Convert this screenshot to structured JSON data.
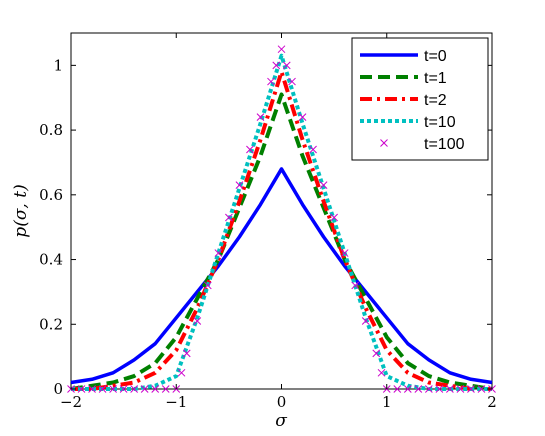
{
  "chart_data": {
    "type": "line",
    "title": "",
    "xlabel": "σ",
    "ylabel": "p(σ, t)",
    "xlim": [
      -2,
      2
    ],
    "ylim": [
      0,
      1.1
    ],
    "xticks": [
      -2,
      -1,
      0,
      1,
      2
    ],
    "yticks": [
      0,
      0.2,
      0.4,
      0.6,
      0.8,
      1
    ],
    "xtick_labels": [
      "−2",
      "−1",
      "0",
      "1",
      "2"
    ],
    "ytick_labels": [
      "0",
      "0.2",
      "0.4",
      "0.6",
      "0.8",
      "1"
    ],
    "legend_position": "top-right",
    "grid": false,
    "series": [
      {
        "name": "t=0",
        "color": "#0000ff",
        "style": "solid",
        "x": [
          -2,
          -1.8,
          -1.6,
          -1.4,
          -1.2,
          -1.0,
          -0.8,
          -0.6,
          -0.4,
          -0.2,
          0,
          0.2,
          0.4,
          0.6,
          0.8,
          1.0,
          1.2,
          1.4,
          1.6,
          1.8,
          2
        ],
        "y": [
          0.02,
          0.03,
          0.05,
          0.09,
          0.14,
          0.22,
          0.3,
          0.38,
          0.47,
          0.57,
          0.68,
          0.57,
          0.47,
          0.38,
          0.3,
          0.22,
          0.14,
          0.09,
          0.05,
          0.03,
          0.02
        ]
      },
      {
        "name": "t=1",
        "color": "#008000",
        "style": "dashed",
        "x": [
          -2,
          -1.8,
          -1.6,
          -1.4,
          -1.2,
          -1.0,
          -0.8,
          -0.6,
          -0.4,
          -0.2,
          0,
          0.2,
          0.4,
          0.6,
          0.8,
          1.0,
          1.2,
          1.4,
          1.6,
          1.8,
          2
        ],
        "y": [
          0.0,
          0.01,
          0.02,
          0.04,
          0.08,
          0.16,
          0.28,
          0.4,
          0.56,
          0.72,
          0.91,
          0.72,
          0.56,
          0.4,
          0.28,
          0.16,
          0.08,
          0.04,
          0.02,
          0.01,
          0.0
        ]
      },
      {
        "name": "t=2",
        "color": "#ff0000",
        "style": "dashdot",
        "x": [
          -2,
          -1.8,
          -1.6,
          -1.4,
          -1.2,
          -1.0,
          -0.8,
          -0.6,
          -0.4,
          -0.2,
          0,
          0.2,
          0.4,
          0.6,
          0.8,
          1.0,
          1.2,
          1.4,
          1.6,
          1.8,
          2
        ],
        "y": [
          0.0,
          0.0,
          0.01,
          0.02,
          0.05,
          0.12,
          0.25,
          0.4,
          0.58,
          0.77,
          0.98,
          0.77,
          0.58,
          0.4,
          0.25,
          0.12,
          0.05,
          0.02,
          0.01,
          0.0,
          0.0
        ]
      },
      {
        "name": "t=10",
        "color": "#00c0c0",
        "style": "dotted",
        "x": [
          -2,
          -1.8,
          -1.6,
          -1.4,
          -1.2,
          -1.0,
          -0.8,
          -0.6,
          -0.4,
          -0.2,
          0,
          0.2,
          0.4,
          0.6,
          0.8,
          1.0,
          1.2,
          1.4,
          1.6,
          1.8,
          2
        ],
        "y": [
          0.0,
          0.0,
          0.0,
          0.0,
          0.01,
          0.04,
          0.22,
          0.42,
          0.62,
          0.82,
          1.03,
          0.82,
          0.62,
          0.42,
          0.22,
          0.04,
          0.01,
          0.0,
          0.0,
          0.0,
          0.0
        ]
      },
      {
        "name": "t=100",
        "color": "#cc00cc",
        "style": "markers",
        "x": [
          -2,
          -1.9,
          -1.8,
          -1.7,
          -1.6,
          -1.5,
          -1.4,
          -1.3,
          -1.2,
          -1.1,
          -1.0,
          -0.95,
          -0.9,
          -0.8,
          -0.7,
          -0.6,
          -0.5,
          -0.4,
          -0.3,
          -0.2,
          -0.1,
          -0.05,
          0,
          0.05,
          0.1,
          0.2,
          0.3,
          0.4,
          0.5,
          0.6,
          0.7,
          0.8,
          0.9,
          0.95,
          1.0,
          1.1,
          1.2,
          1.3,
          1.4,
          1.5,
          1.6,
          1.7,
          1.8,
          1.9,
          2
        ],
        "y": [
          0,
          0,
          0,
          0,
          0,
          0,
          0,
          0,
          0,
          0,
          0,
          0.05,
          0.11,
          0.21,
          0.32,
          0.42,
          0.53,
          0.63,
          0.74,
          0.84,
          0.95,
          1.0,
          1.05,
          1.0,
          0.95,
          0.84,
          0.74,
          0.63,
          0.53,
          0.42,
          0.32,
          0.21,
          0.11,
          0.05,
          0,
          0,
          0,
          0,
          0,
          0,
          0,
          0,
          0,
          0,
          0
        ]
      }
    ]
  }
}
